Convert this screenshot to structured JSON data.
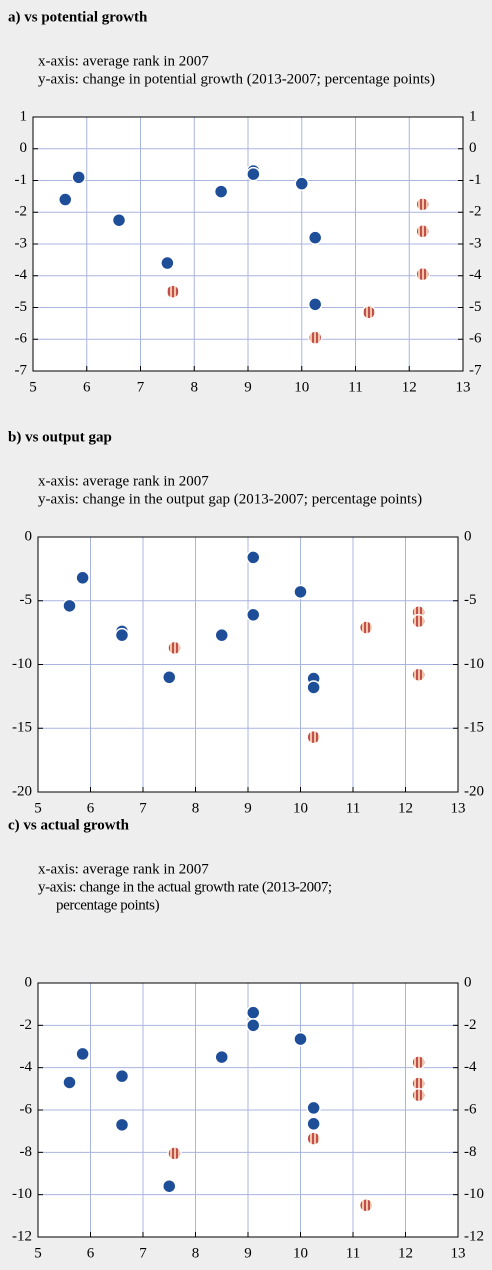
{
  "chart_data": [
    {
      "type": "scatter",
      "title": "a) vs potential growth",
      "subtitle": [
        "x-axis: average rank in 2007",
        "y-axis: change in potential growth (2013-2007; percentage points)"
      ],
      "xlim": [
        5,
        13
      ],
      "xticks": [
        5,
        6,
        7,
        8,
        9,
        10,
        11,
        12,
        13
      ],
      "ylim": [
        -7,
        1
      ],
      "yticks": [
        1,
        0,
        -1,
        -2,
        -3,
        -4,
        -5,
        -6,
        -7
      ],
      "grid": true,
      "series": [
        {
          "color": "#1f4e99",
          "x": [
            5.6,
            5.85,
            6.6,
            7.5,
            8.5,
            9.1,
            9.1,
            10.0,
            10.25,
            10.25
          ],
          "values": [
            -1.6,
            -0.9,
            -2.25,
            -3.6,
            -1.35,
            -0.7,
            -0.8,
            -1.1,
            -2.8,
            -4.9
          ]
        },
        {
          "color": "#c0504d",
          "x": [
            7.6,
            10.25,
            11.25,
            12.25,
            12.25,
            12.25
          ],
          "values": [
            -4.5,
            -5.95,
            -5.15,
            -1.75,
            -2.6,
            -3.95
          ]
        }
      ]
    },
    {
      "type": "scatter",
      "title": "b) vs output gap",
      "subtitle": [
        "x-axis: average rank in 2007",
        "y-axis: change in the output gap (2013-2007; percentage points)"
      ],
      "xlim": [
        5,
        13
      ],
      "xticks": [
        5,
        6,
        7,
        8,
        9,
        10,
        11,
        12,
        13
      ],
      "ylim": [
        -20,
        0
      ],
      "yticks": [
        0,
        -5,
        -10,
        -15,
        -20
      ],
      "grid": true,
      "series": [
        {
          "color": "#1f4e99",
          "x": [
            5.6,
            5.85,
            6.6,
            6.6,
            7.5,
            8.5,
            9.1,
            9.1,
            10.0,
            10.25,
            10.25
          ],
          "values": [
            -5.4,
            -3.2,
            -7.4,
            -7.7,
            -11.0,
            -7.7,
            -1.6,
            -6.1,
            -4.3,
            -11.1,
            -11.8
          ]
        },
        {
          "color": "#c0504d",
          "x": [
            7.6,
            10.25,
            11.25,
            12.25,
            12.25,
            12.25
          ],
          "values": [
            -8.7,
            -15.7,
            -7.1,
            -5.9,
            -6.6,
            -10.8
          ]
        }
      ]
    },
    {
      "type": "scatter",
      "title": "c) vs actual growth",
      "subtitle": [
        "x-axis: average rank in 2007",
        "y-axis: change in the actual growth rate (2013-2007;",
        "percentage points)"
      ],
      "xlim": [
        5,
        13
      ],
      "xticks": [
        5,
        6,
        7,
        8,
        9,
        10,
        11,
        12,
        13
      ],
      "ylim": [
        -12,
        0
      ],
      "yticks": [
        0,
        -2,
        -4,
        -6,
        -8,
        -10,
        -12
      ],
      "grid": true,
      "series": [
        {
          "color": "#1f4e99",
          "x": [
            5.6,
            5.85,
            6.6,
            6.6,
            7.5,
            8.5,
            9.1,
            9.1,
            10.0,
            10.25,
            10.25
          ],
          "values": [
            -4.7,
            -3.35,
            -4.4,
            -6.7,
            -9.6,
            -3.5,
            -1.4,
            -2.0,
            -2.65,
            -5.9,
            -6.65
          ]
        },
        {
          "color": "#c0504d",
          "x": [
            7.6,
            10.25,
            11.25,
            12.25,
            12.25,
            12.25
          ],
          "values": [
            -8.05,
            -7.35,
            -10.5,
            -3.75,
            -4.75,
            -5.3
          ]
        }
      ]
    }
  ]
}
